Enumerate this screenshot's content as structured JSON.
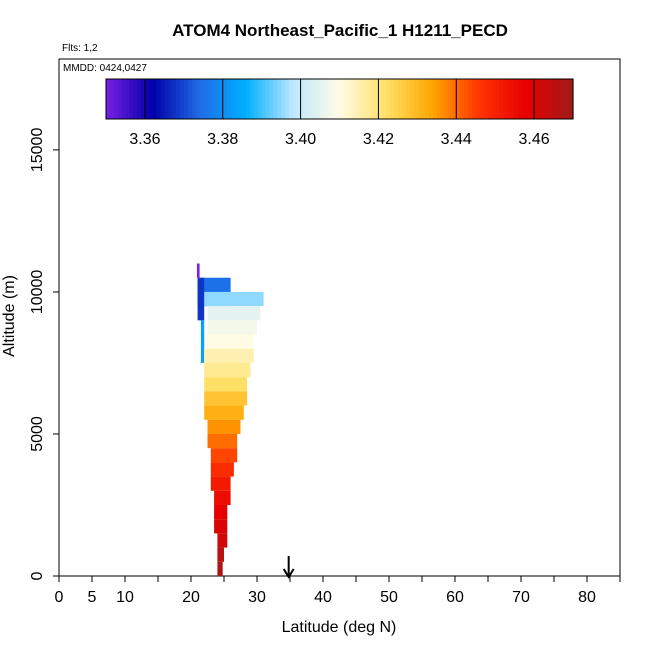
{
  "chart_data": {
    "type": "heatmap",
    "title": "ATOM4 Northeast_Pacific_1 H1211_PECD",
    "flights_note": "Flts: 1,2",
    "dates_note": "MMDD: 0424,0427",
    "xlabel": "Latitude (deg N)",
    "ylabel": "Altitude (m)",
    "xlim": [
      0,
      85
    ],
    "ylim": [
      0,
      18200
    ],
    "x_ticks": [
      0,
      5,
      10,
      20,
      30,
      40,
      50,
      60,
      70,
      80
    ],
    "x_minor_ticks": [
      15,
      25,
      35,
      45,
      55,
      65,
      75,
      85
    ],
    "y_ticks": [
      0,
      5000,
      10000,
      15000
    ],
    "colorbar": {
      "range": [
        3.35,
        3.47
      ],
      "ticks": [
        3.36,
        3.38,
        3.4,
        3.42,
        3.44,
        3.46
      ],
      "tick_labels": [
        "3.36",
        "3.38",
        "3.40",
        "3.42",
        "3.44",
        "3.46"
      ],
      "palette": [
        "#7a1fe6",
        "#0000a8",
        "#1f6be6",
        "#00b0ff",
        "#bfe6ff",
        "#fffce6",
        "#ffe066",
        "#ffa500",
        "#ff3300",
        "#e60000",
        "#a01a1a"
      ]
    },
    "position_marker": {
      "latitude": 34.8,
      "symbol": "arrow"
    },
    "cells": [
      {
        "lat_min": 20.9,
        "lat_max": 21.3,
        "alt_min": 10500,
        "alt_max": 11000,
        "value": 3.35
      },
      {
        "lat_min": 21.0,
        "lat_max": 26.0,
        "alt_min": 9500,
        "alt_max": 10500,
        "value": 3.375
      },
      {
        "lat_min": 21.0,
        "lat_max": 22.0,
        "alt_min": 9000,
        "alt_max": 10500,
        "value": 3.368
      },
      {
        "lat_min": 22.0,
        "lat_max": 31.0,
        "alt_min": 9500,
        "alt_max": 10000,
        "value": 3.395
      },
      {
        "lat_min": 22.5,
        "lat_max": 30.5,
        "alt_min": 9000,
        "alt_max": 9500,
        "value": 3.405
      },
      {
        "lat_min": 22.5,
        "lat_max": 30.0,
        "alt_min": 8500,
        "alt_max": 9000,
        "value": 3.408
      },
      {
        "lat_min": 22.0,
        "lat_max": 29.5,
        "alt_min": 8000,
        "alt_max": 8500,
        "value": 3.41
      },
      {
        "lat_min": 21.5,
        "lat_max": 22.0,
        "alt_min": 7500,
        "alt_max": 9000,
        "value": 3.383
      },
      {
        "lat_min": 22.0,
        "lat_max": 29.5,
        "alt_min": 7500,
        "alt_max": 8000,
        "value": 3.415
      },
      {
        "lat_min": 22.0,
        "lat_max": 29.0,
        "alt_min": 7000,
        "alt_max": 7500,
        "value": 3.418
      },
      {
        "lat_min": 22.0,
        "lat_max": 28.5,
        "alt_min": 6500,
        "alt_max": 7000,
        "value": 3.422
      },
      {
        "lat_min": 22.0,
        "lat_max": 28.5,
        "alt_min": 6000,
        "alt_max": 6500,
        "value": 3.428
      },
      {
        "lat_min": 22.0,
        "lat_max": 28.0,
        "alt_min": 5500,
        "alt_max": 6000,
        "value": 3.432
      },
      {
        "lat_min": 22.5,
        "lat_max": 27.5,
        "alt_min": 5000,
        "alt_max": 5500,
        "value": 3.436
      },
      {
        "lat_min": 22.5,
        "lat_max": 27.0,
        "alt_min": 4500,
        "alt_max": 5000,
        "value": 3.44
      },
      {
        "lat_min": 23.0,
        "lat_max": 27.0,
        "alt_min": 4000,
        "alt_max": 4500,
        "value": 3.444
      },
      {
        "lat_min": 23.0,
        "lat_max": 26.5,
        "alt_min": 3500,
        "alt_max": 4000,
        "value": 3.448
      },
      {
        "lat_min": 23.0,
        "lat_max": 26.0,
        "alt_min": 3000,
        "alt_max": 3500,
        "value": 3.452
      },
      {
        "lat_min": 23.5,
        "lat_max": 26.0,
        "alt_min": 2500,
        "alt_max": 3000,
        "value": 3.455
      },
      {
        "lat_min": 23.5,
        "lat_max": 25.5,
        "alt_min": 2000,
        "alt_max": 2500,
        "value": 3.458
      },
      {
        "lat_min": 23.5,
        "lat_max": 25.5,
        "alt_min": 1500,
        "alt_max": 2000,
        "value": 3.46
      },
      {
        "lat_min": 24.0,
        "lat_max": 25.5,
        "alt_min": 1000,
        "alt_max": 1500,
        "value": 3.462
      },
      {
        "lat_min": 24.0,
        "lat_max": 25.0,
        "alt_min": 500,
        "alt_max": 1000,
        "value": 3.466
      },
      {
        "lat_min": 24.0,
        "lat_max": 24.8,
        "alt_min": 0,
        "alt_max": 500,
        "value": 3.468
      }
    ]
  }
}
